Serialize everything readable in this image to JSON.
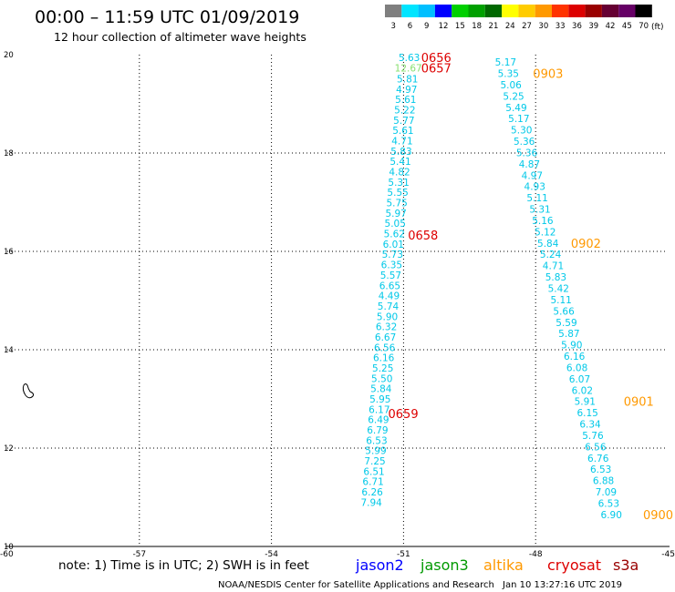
{
  "header": {
    "title": "00:00 – 11:59 UTC 01/09/2019",
    "subtitle": "12 hour collection of altimeter wave heights"
  },
  "colorbar": {
    "labels": [
      "3",
      "6",
      "9",
      "12",
      "15",
      "18",
      "21",
      "24",
      "27",
      "30",
      "33",
      "36",
      "39",
      "42",
      "45",
      "70"
    ],
    "unit": "(ft)",
    "colors": [
      "#7f7f7f",
      "#00e5ff",
      "#00bfff",
      "#0000ff",
      "#00d000",
      "#00a000",
      "#006800",
      "#ffff00",
      "#ffcc00",
      "#ff9900",
      "#ff3300",
      "#dd0000",
      "#990000",
      "#660033",
      "#660066",
      "#000000"
    ]
  },
  "footer": {
    "note": "note: 1) Time is in UTC; 2) SWH is in feet",
    "credit": "NOAA/NESDIS Center for Satellite Applications and Research",
    "timestamp": "Jan 10 13:27:16 UTC 2019",
    "satellites": [
      {
        "name": "jason2",
        "color": "#0000ff"
      },
      {
        "name": "jason3",
        "color": "#009900"
      },
      {
        "name": "altika",
        "color": "#ff9900"
      },
      {
        "name": "cryosat",
        "color": "#dd0000"
      },
      {
        "name": "s3a",
        "color": "#990000"
      }
    ]
  },
  "chart_data": {
    "type": "scatter",
    "xlabel": "",
    "ylabel": "",
    "xlim": [
      -60,
      -45
    ],
    "ylim": [
      10,
      20
    ],
    "x_ticks": [
      "-60",
      "-57",
      "-54",
      "-51",
      "-48",
      "-45"
    ],
    "y_ticks": [
      "10",
      "12",
      "14",
      "16",
      "18",
      "20"
    ],
    "grid": true,
    "series": [
      {
        "name": "cryosat",
        "color_swh": "#00c8e8",
        "color_highlight": "#88e070",
        "points": [
          {
            "x": -50.87,
            "y": 19.94,
            "v": "5.63"
          },
          {
            "x": -50.89,
            "y": 19.73,
            "v": "12.67",
            "highlight": true
          },
          {
            "x": -50.91,
            "y": 19.51,
            "v": "5.81"
          },
          {
            "x": -50.93,
            "y": 19.3,
            "v": "4.97"
          },
          {
            "x": -50.95,
            "y": 19.09,
            "v": "5.61"
          },
          {
            "x": -50.97,
            "y": 18.88,
            "v": "5.22"
          },
          {
            "x": -50.99,
            "y": 18.67,
            "v": "5.77"
          },
          {
            "x": -51.01,
            "y": 18.46,
            "v": "5.61"
          },
          {
            "x": -51.03,
            "y": 18.25,
            "v": "4.71"
          },
          {
            "x": -51.05,
            "y": 18.04,
            "v": "5.83"
          },
          {
            "x": -51.07,
            "y": 17.83,
            "v": "5.41"
          },
          {
            "x": -51.09,
            "y": 17.62,
            "v": "4.82"
          },
          {
            "x": -51.11,
            "y": 17.41,
            "v": "5.31"
          },
          {
            "x": -51.13,
            "y": 17.2,
            "v": "5.55"
          },
          {
            "x": -51.15,
            "y": 16.99,
            "v": "5.75"
          },
          {
            "x": -51.17,
            "y": 16.78,
            "v": "5.97"
          },
          {
            "x": -51.19,
            "y": 16.57,
            "v": "5.05"
          },
          {
            "x": -51.21,
            "y": 16.36,
            "v": "5.62"
          },
          {
            "x": -51.23,
            "y": 16.15,
            "v": "6.01"
          },
          {
            "x": -51.25,
            "y": 15.94,
            "v": "5.73"
          },
          {
            "x": -51.27,
            "y": 15.73,
            "v": "6.35"
          },
          {
            "x": -51.29,
            "y": 15.52,
            "v": "5.57"
          },
          {
            "x": -51.31,
            "y": 15.31,
            "v": "6.65"
          },
          {
            "x": -51.33,
            "y": 15.1,
            "v": "4.49"
          },
          {
            "x": -51.35,
            "y": 14.89,
            "v": "5.74"
          },
          {
            "x": -51.37,
            "y": 14.68,
            "v": "5.90"
          },
          {
            "x": -51.39,
            "y": 14.47,
            "v": "6.32"
          },
          {
            "x": -51.41,
            "y": 14.26,
            "v": "6.67"
          },
          {
            "x": -51.43,
            "y": 14.05,
            "v": "6.56"
          },
          {
            "x": -51.45,
            "y": 13.84,
            "v": "6.16"
          },
          {
            "x": -51.47,
            "y": 13.63,
            "v": "5.25"
          },
          {
            "x": -51.49,
            "y": 13.42,
            "v": "5.50"
          },
          {
            "x": -51.51,
            "y": 13.21,
            "v": "5.84"
          },
          {
            "x": -51.53,
            "y": 13.0,
            "v": "5.95"
          },
          {
            "x": -51.55,
            "y": 12.79,
            "v": "6.17"
          },
          {
            "x": -51.57,
            "y": 12.58,
            "v": "6.49"
          },
          {
            "x": -51.59,
            "y": 12.37,
            "v": "6.79"
          },
          {
            "x": -51.61,
            "y": 12.16,
            "v": "6.53"
          },
          {
            "x": -51.63,
            "y": 11.95,
            "v": "5.99"
          },
          {
            "x": -51.65,
            "y": 11.74,
            "v": "7.25"
          },
          {
            "x": -51.67,
            "y": 11.53,
            "v": "6.51"
          },
          {
            "x": -51.69,
            "y": 11.32,
            "v": "6.71"
          },
          {
            "x": -51.71,
            "y": 11.11,
            "v": "6.26"
          },
          {
            "x": -51.73,
            "y": 10.9,
            "v": "7.94"
          }
        ],
        "times": [
          {
            "x": -50.6,
            "y": 19.94,
            "v": "0656"
          },
          {
            "x": -50.6,
            "y": 19.73,
            "v": "0657"
          },
          {
            "x": -50.9,
            "y": 16.33,
            "v": "0658"
          },
          {
            "x": -51.35,
            "y": 12.7,
            "v": "0659"
          }
        ]
      },
      {
        "name": "altika",
        "color_swh": "#00c8e8",
        "points": [
          {
            "x": -48.68,
            "y": 19.85,
            "v": "5.17"
          },
          {
            "x": -48.62,
            "y": 19.62,
            "v": "5.35"
          },
          {
            "x": -48.56,
            "y": 19.39,
            "v": "5.06"
          },
          {
            "x": -48.5,
            "y": 19.16,
            "v": "5.25"
          },
          {
            "x": -48.44,
            "y": 18.93,
            "v": "5.49"
          },
          {
            "x": -48.38,
            "y": 18.7,
            "v": "5.17"
          },
          {
            "x": -48.32,
            "y": 18.47,
            "v": "5.30"
          },
          {
            "x": -48.26,
            "y": 18.24,
            "v": "5.36"
          },
          {
            "x": -48.2,
            "y": 18.01,
            "v": "5.36"
          },
          {
            "x": -48.14,
            "y": 17.78,
            "v": "4.87"
          },
          {
            "x": -48.08,
            "y": 17.55,
            "v": "4.97"
          },
          {
            "x": -48.02,
            "y": 17.32,
            "v": "4.93"
          },
          {
            "x": -47.96,
            "y": 17.09,
            "v": "5.11"
          },
          {
            "x": -47.9,
            "y": 16.86,
            "v": "5.31"
          },
          {
            "x": -47.84,
            "y": 16.63,
            "v": "5.16"
          },
          {
            "x": -47.78,
            "y": 16.4,
            "v": "5.12"
          },
          {
            "x": -47.72,
            "y": 16.17,
            "v": "5.84"
          },
          {
            "x": -47.66,
            "y": 15.94,
            "v": "5.24"
          },
          {
            "x": -47.6,
            "y": 15.71,
            "v": "4.71"
          },
          {
            "x": -47.54,
            "y": 15.48,
            "v": "5.83"
          },
          {
            "x": -47.48,
            "y": 15.25,
            "v": "5.42"
          },
          {
            "x": -47.42,
            "y": 15.02,
            "v": "5.11"
          },
          {
            "x": -47.36,
            "y": 14.79,
            "v": "5.66"
          },
          {
            "x": -47.3,
            "y": 14.56,
            "v": "5.59"
          },
          {
            "x": -47.24,
            "y": 14.33,
            "v": "5.87"
          },
          {
            "x": -47.18,
            "y": 14.1,
            "v": "5.90"
          },
          {
            "x": -47.12,
            "y": 13.87,
            "v": "6.16"
          },
          {
            "x": -47.06,
            "y": 13.64,
            "v": "6.08"
          },
          {
            "x": -47.0,
            "y": 13.41,
            "v": "6.07"
          },
          {
            "x": -46.94,
            "y": 13.18,
            "v": "6.02"
          },
          {
            "x": -46.88,
            "y": 12.95,
            "v": "5.91"
          },
          {
            "x": -46.82,
            "y": 12.72,
            "v": "6.15"
          },
          {
            "x": -46.76,
            "y": 12.49,
            "v": "6.34"
          },
          {
            "x": -46.7,
            "y": 12.26,
            "v": "5.76"
          },
          {
            "x": -46.64,
            "y": 12.03,
            "v": "6.56"
          },
          {
            "x": -46.58,
            "y": 11.8,
            "v": "6.76"
          },
          {
            "x": -46.52,
            "y": 11.57,
            "v": "6.53"
          },
          {
            "x": -46.46,
            "y": 11.34,
            "v": "6.88"
          },
          {
            "x": -46.4,
            "y": 11.11,
            "v": "7.09"
          },
          {
            "x": -46.34,
            "y": 10.88,
            "v": "6.53"
          },
          {
            "x": -46.28,
            "y": 10.65,
            "v": "6.90"
          }
        ],
        "times": [
          {
            "x": -48.06,
            "y": 19.62,
            "v": "0903"
          },
          {
            "x": -47.2,
            "y": 16.17,
            "v": "0902"
          },
          {
            "x": -46.0,
            "y": 12.95,
            "v": "0901"
          },
          {
            "x": -45.56,
            "y": 10.65,
            "v": "0900"
          }
        ]
      }
    ]
  }
}
